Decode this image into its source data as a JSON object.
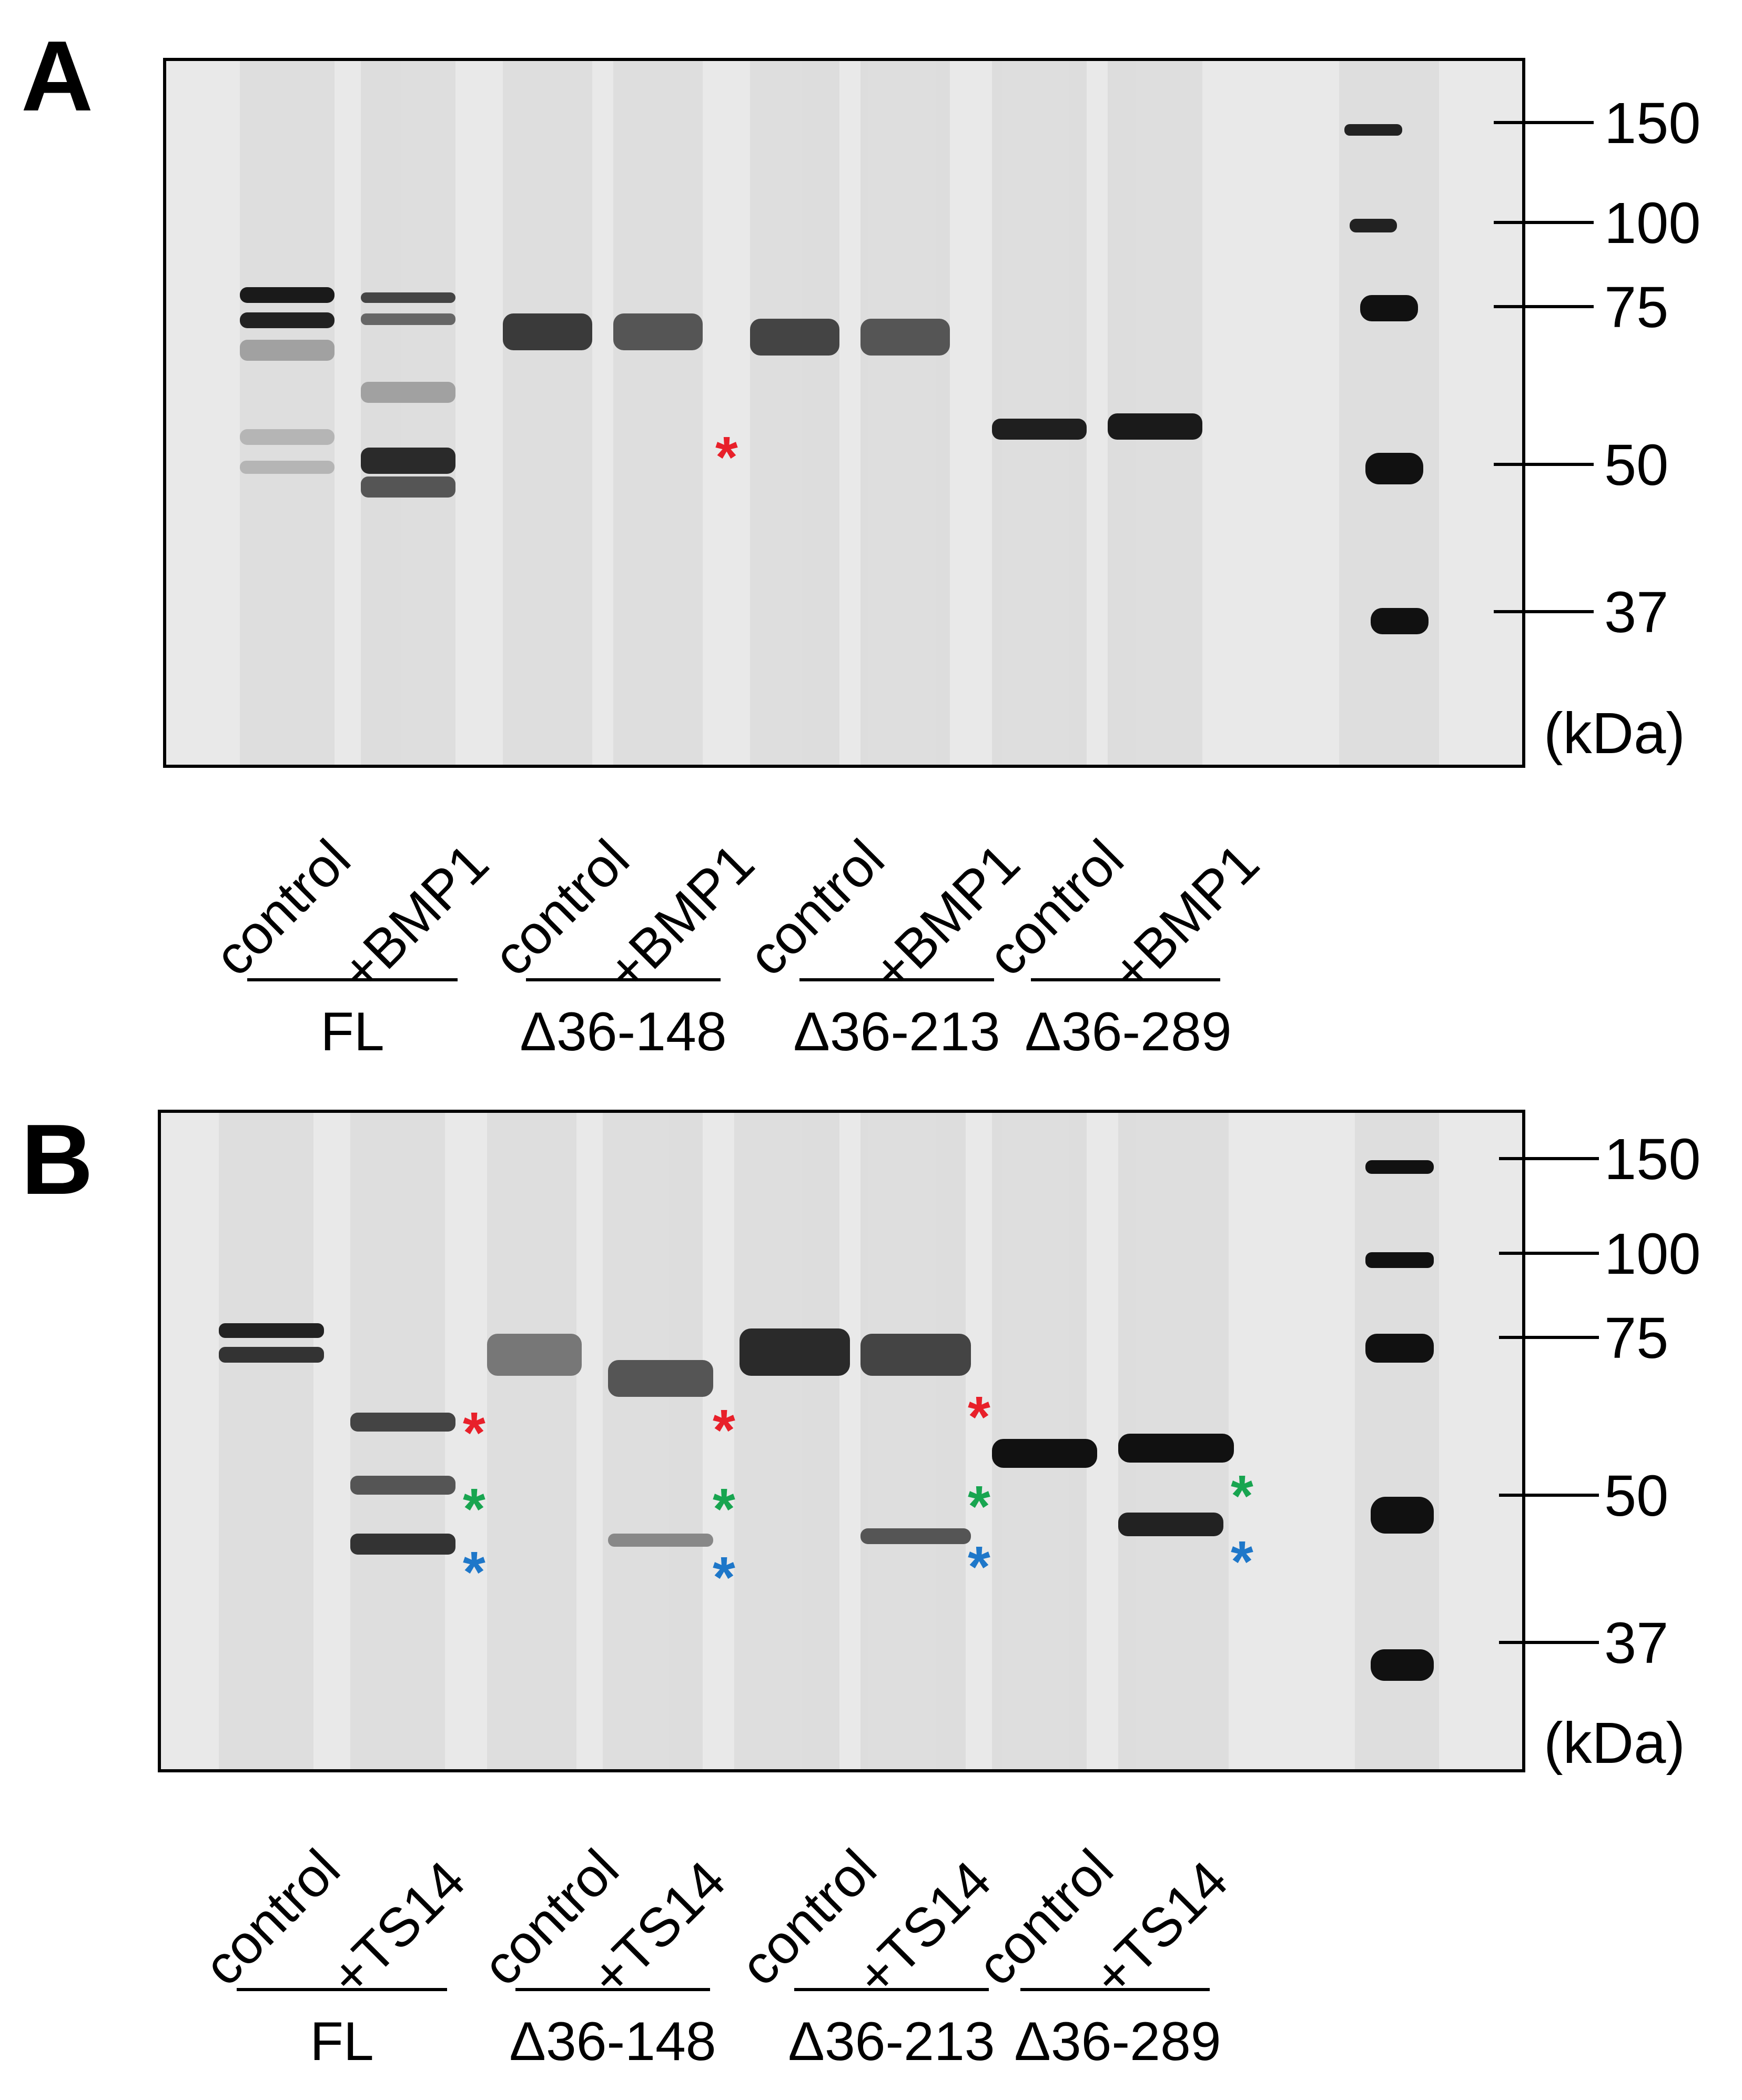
{
  "panels": [
    {
      "letter": "A",
      "lanes": [
        "control",
        "+BMP1",
        "control",
        "+BMP1",
        "control",
        "+BMP1",
        "control",
        "+BMP1"
      ],
      "groups": [
        "FL",
        "Δ36-148",
        "Δ36-213",
        "Δ36-289"
      ],
      "markers": [
        "150",
        "100",
        "75",
        "50",
        "37"
      ],
      "unit": "(kDa)",
      "asterisks": [
        {
          "symbol": "*",
          "color": "#e8202a"
        }
      ]
    },
    {
      "letter": "B",
      "lanes": [
        "control",
        "+TS14",
        "control",
        "+TS14",
        "control",
        "+TS14",
        "control",
        "+TS14"
      ],
      "groups": [
        "FL",
        "Δ36-148",
        "Δ36-213",
        "Δ36-289"
      ],
      "markers": [
        "150",
        "100",
        "75",
        "50",
        "37"
      ],
      "unit": "(kDa)",
      "asterisks": [
        {
          "symbol": "*",
          "color": "#e8202a"
        },
        {
          "symbol": "*",
          "color": "#18a550"
        },
        {
          "symbol": "*",
          "color": "#1e77c9"
        },
        {
          "symbol": "*",
          "color": "#e8202a"
        },
        {
          "symbol": "*",
          "color": "#18a550"
        },
        {
          "symbol": "*",
          "color": "#1e77c9"
        },
        {
          "symbol": "*",
          "color": "#e8202a"
        },
        {
          "symbol": "*",
          "color": "#18a550"
        },
        {
          "symbol": "*",
          "color": "#1e77c9"
        },
        {
          "symbol": "*",
          "color": "#18a550"
        },
        {
          "symbol": "*",
          "color": "#1e77c9"
        }
      ]
    }
  ]
}
